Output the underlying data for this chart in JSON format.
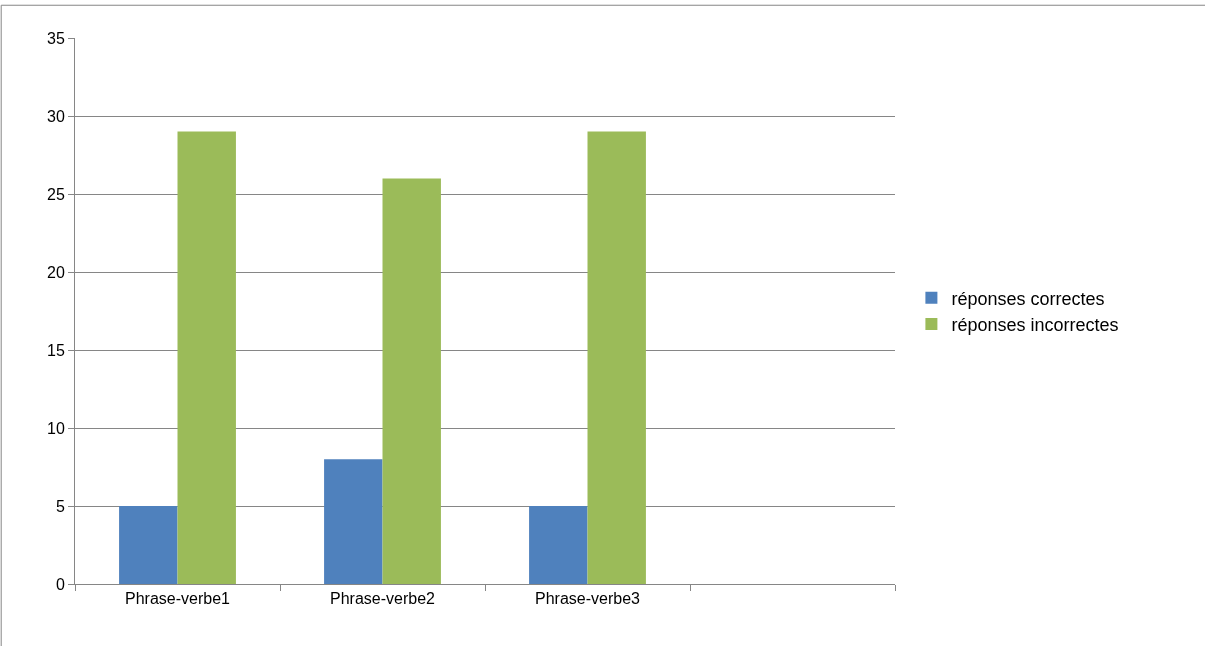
{
  "chart_data": {
    "type": "bar",
    "categories": [
      "Phrase-verbe1",
      "Phrase-verbe2",
      "Phrase-verbe3",
      null
    ],
    "series": [
      {
        "name": "réponses correctes",
        "color": "#4f81bd",
        "values": [
          5,
          8,
          5,
          null
        ]
      },
      {
        "name": "réponses incorrectes",
        "color": "#9bbb59",
        "values": [
          29,
          26,
          29,
          null
        ]
      }
    ],
    "ylim": [
      0,
      35
    ],
    "yticks": [
      0,
      5,
      10,
      15,
      20,
      25,
      30,
      35
    ],
    "grid": "y",
    "legend": "right"
  }
}
